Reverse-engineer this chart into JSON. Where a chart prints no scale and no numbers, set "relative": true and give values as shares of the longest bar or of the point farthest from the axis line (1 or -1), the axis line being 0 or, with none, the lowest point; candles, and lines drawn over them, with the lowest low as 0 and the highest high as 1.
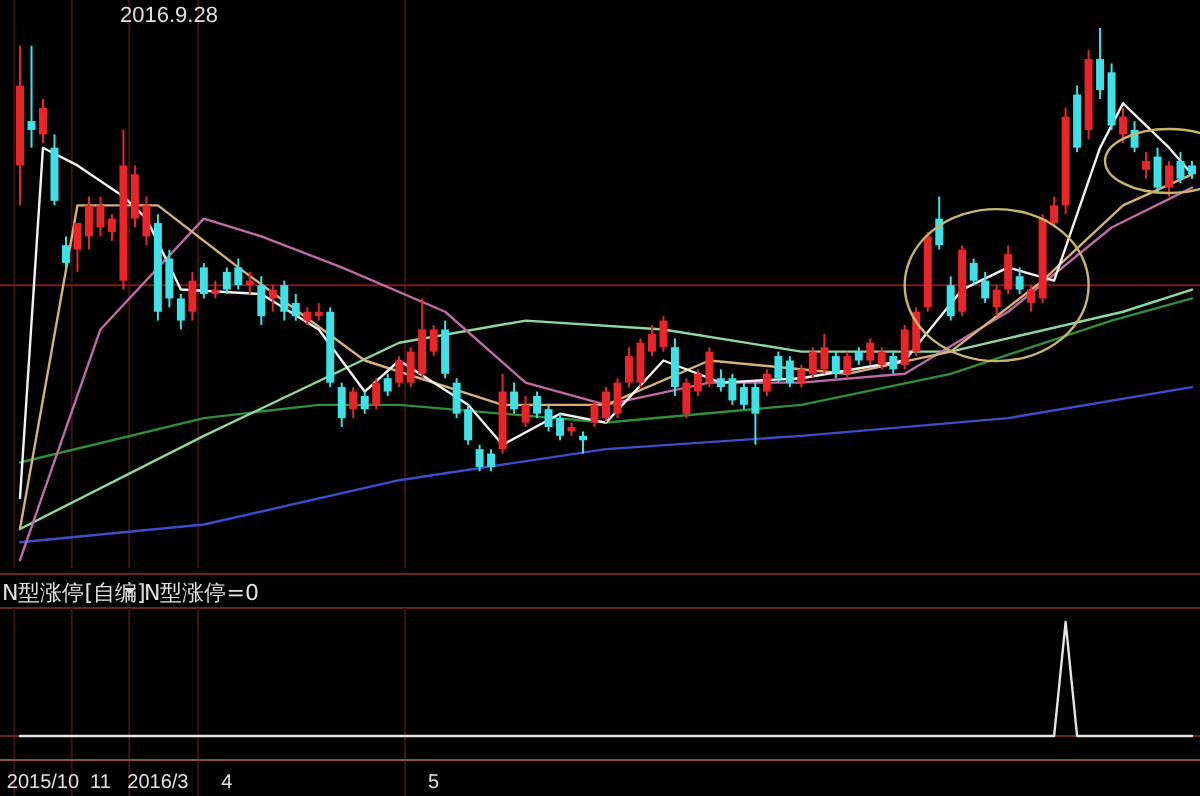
{
  "chart_data": [
    {
      "type": "candlestick",
      "title": "2016.9.28",
      "relative": true,
      "tick_labels": false,
      "categories": [
        null,
        null,
        "2015/10",
        null,
        null,
        null,
        null,
        "11",
        null,
        null,
        null,
        null,
        "2016/3",
        null,
        null,
        null,
        null,
        null,
        "4",
        null,
        null,
        null,
        null,
        null,
        null,
        null,
        null,
        null,
        null,
        null,
        null,
        null,
        null,
        null,
        null,
        null,
        "5",
        null,
        null,
        null,
        null,
        null,
        null,
        null,
        null,
        null,
        null,
        null,
        null,
        null,
        null,
        null,
        null,
        null,
        null,
        null,
        null,
        null,
        null,
        null,
        null,
        null,
        null,
        null,
        null,
        null,
        null,
        null,
        null,
        null,
        null,
        null,
        null,
        null,
        null,
        null,
        null,
        null,
        null,
        null,
        null,
        null,
        null,
        null,
        null,
        null,
        null,
        null,
        null,
        null,
        null,
        null,
        null,
        null,
        null,
        null,
        null,
        null,
        null,
        null,
        null,
        null,
        null
      ],
      "ohlc": [
        [
          0.69,
          0.96,
          0.6,
          0.87
        ],
        [
          0.79,
          0.96,
          0.73,
          0.77
        ],
        [
          0.76,
          0.84,
          0.74,
          0.82
        ],
        [
          0.73,
          0.76,
          0.6,
          0.61
        ],
        [
          0.51,
          0.53,
          0.46,
          0.47
        ],
        [
          0.5,
          0.56,
          0.45,
          0.56
        ],
        [
          0.53,
          0.62,
          0.5,
          0.6
        ],
        [
          0.55,
          0.62,
          0.53,
          0.6
        ],
        [
          0.54,
          0.58,
          0.52,
          0.57
        ],
        [
          0.43,
          0.77,
          0.41,
          0.69
        ],
        [
          0.57,
          0.69,
          0.55,
          0.67
        ],
        [
          0.53,
          0.62,
          0.51,
          0.6
        ],
        [
          0.56,
          0.58,
          0.34,
          0.36
        ],
        [
          0.48,
          0.5,
          0.37,
          0.39
        ],
        [
          0.39,
          0.4,
          0.32,
          0.34
        ],
        [
          0.36,
          0.45,
          0.34,
          0.43
        ],
        [
          0.46,
          0.47,
          0.39,
          0.4
        ],
        [
          0.4,
          0.43,
          0.39,
          0.41
        ],
        [
          0.45,
          0.46,
          0.4,
          0.41
        ],
        [
          0.46,
          0.48,
          0.41,
          0.42
        ],
        [
          0.42,
          0.45,
          0.4,
          0.43
        ],
        [
          0.42,
          0.44,
          0.33,
          0.35
        ],
        [
          0.39,
          0.42,
          0.36,
          0.41
        ],
        [
          0.42,
          0.43,
          0.34,
          0.36
        ],
        [
          0.38,
          0.4,
          0.34,
          0.35
        ],
        [
          0.34,
          0.37,
          0.33,
          0.36
        ],
        [
          0.35,
          0.38,
          0.34,
          0.36
        ],
        [
          0.36,
          0.37,
          0.19,
          0.2
        ],
        [
          0.19,
          0.2,
          0.1,
          0.12
        ],
        [
          0.14,
          0.19,
          0.12,
          0.18
        ],
        [
          0.17,
          0.18,
          0.13,
          0.14
        ],
        [
          0.15,
          0.21,
          0.14,
          0.2
        ],
        [
          0.21,
          0.22,
          0.17,
          0.18
        ],
        [
          0.2,
          0.26,
          0.19,
          0.25
        ],
        [
          0.2,
          0.28,
          0.19,
          0.27
        ],
        [
          0.22,
          0.39,
          0.21,
          0.32
        ],
        [
          0.27,
          0.33,
          0.26,
          0.32
        ],
        [
          0.32,
          0.34,
          0.21,
          0.22
        ],
        [
          0.2,
          0.21,
          0.12,
          0.13
        ],
        [
          0.14,
          0.15,
          0.06,
          0.07
        ],
        [
          0.05,
          0.06,
          0.0,
          0.01
        ],
        [
          0.04,
          0.05,
          0.0,
          0.01
        ],
        [
          0.05,
          0.22,
          0.04,
          0.18
        ],
        [
          0.18,
          0.2,
          0.13,
          0.14
        ],
        [
          0.11,
          0.17,
          0.1,
          0.15
        ],
        [
          0.17,
          0.18,
          0.12,
          0.13
        ],
        [
          0.14,
          0.15,
          0.09,
          0.1
        ],
        [
          0.12,
          0.13,
          0.07,
          0.08
        ],
        [
          0.09,
          0.11,
          0.08,
          0.1
        ],
        [
          0.08,
          0.09,
          0.04,
          0.07
        ],
        [
          0.11,
          0.16,
          0.1,
          0.15
        ],
        [
          0.12,
          0.19,
          0.11,
          0.18
        ],
        [
          0.13,
          0.21,
          0.12,
          0.2
        ],
        [
          0.2,
          0.28,
          0.19,
          0.26
        ],
        [
          0.2,
          0.3,
          0.19,
          0.29
        ],
        [
          0.27,
          0.33,
          0.26,
          0.31
        ],
        [
          0.28,
          0.35,
          0.27,
          0.34
        ],
        [
          0.28,
          0.3,
          0.17,
          0.19
        ],
        [
          0.13,
          0.21,
          0.12,
          0.2
        ],
        [
          0.18,
          0.23,
          0.17,
          0.22
        ],
        [
          0.2,
          0.28,
          0.19,
          0.27
        ],
        [
          0.21,
          0.23,
          0.18,
          0.19
        ],
        [
          0.21,
          0.22,
          0.15,
          0.16
        ],
        [
          0.19,
          0.2,
          0.14,
          0.15
        ],
        [
          0.19,
          0.2,
          0.06,
          0.13
        ],
        [
          0.18,
          0.23,
          0.17,
          0.22
        ],
        [
          0.26,
          0.27,
          0.2,
          0.21
        ],
        [
          0.25,
          0.26,
          0.19,
          0.2
        ],
        [
          0.2,
          0.24,
          0.19,
          0.23
        ],
        [
          0.22,
          0.28,
          0.21,
          0.27
        ],
        [
          0.23,
          0.31,
          0.22,
          0.28
        ],
        [
          0.26,
          0.27,
          0.21,
          0.22
        ],
        [
          0.22,
          0.27,
          0.21,
          0.26
        ],
        [
          0.27,
          0.28,
          0.24,
          0.25
        ],
        [
          0.25,
          0.3,
          0.24,
          0.29
        ],
        [
          0.24,
          0.28,
          0.23,
          0.27
        ],
        [
          0.26,
          0.27,
          0.22,
          0.23
        ],
        [
          0.24,
          0.33,
          0.23,
          0.32
        ],
        [
          0.27,
          0.37,
          0.26,
          0.36
        ],
        [
          0.37,
          0.54,
          0.36,
          0.53
        ],
        [
          0.57,
          0.62,
          0.5,
          0.51
        ],
        [
          0.42,
          0.44,
          0.34,
          0.35
        ],
        [
          0.36,
          0.51,
          0.35,
          0.5
        ],
        [
          0.47,
          0.48,
          0.42,
          0.43
        ],
        [
          0.43,
          0.45,
          0.38,
          0.39
        ],
        [
          0.37,
          0.42,
          0.35,
          0.41
        ],
        [
          0.41,
          0.51,
          0.4,
          0.49
        ],
        [
          0.44,
          0.46,
          0.4,
          0.41
        ],
        [
          0.38,
          0.42,
          0.36,
          0.41
        ],
        [
          0.39,
          0.58,
          0.38,
          0.57
        ],
        [
          0.56,
          0.62,
          0.55,
          0.6
        ],
        [
          0.6,
          0.82,
          0.58,
          0.8
        ],
        [
          0.85,
          0.87,
          0.72,
          0.73
        ],
        [
          0.77,
          0.95,
          0.75,
          0.93
        ],
        [
          0.93,
          1.0,
          0.84,
          0.86
        ],
        [
          0.9,
          0.92,
          0.77,
          0.78
        ],
        [
          0.76,
          0.82,
          0.74,
          0.8
        ],
        [
          0.77,
          0.79,
          0.72,
          0.73
        ],
        [
          0.68,
          0.72,
          0.66,
          0.7
        ],
        [
          0.71,
          0.73,
          0.63,
          0.64
        ],
        [
          0.64,
          0.7,
          0.62,
          0.69
        ],
        [
          0.7,
          0.72,
          0.65,
          0.66
        ],
        [
          0.69,
          0.7,
          0.66,
          0.67
        ]
      ],
      "series": [
        {
          "type": "line",
          "color": "#3a4fc8",
          "values": [
            -0.16,
            null,
            null,
            null,
            null,
            null,
            null,
            null,
            null,
            null,
            null,
            null,
            null,
            null,
            null,
            null,
            -0.12,
            null,
            null,
            null,
            null,
            null,
            null,
            null,
            null,
            null,
            null,
            null,
            null,
            null,
            null,
            null,
            null,
            -0.02,
            null,
            null,
            null,
            null,
            null,
            null,
            null,
            null,
            null,
            null,
            null,
            null,
            null,
            null,
            null,
            null,
            null,
            0.05,
            null,
            null,
            null,
            null,
            null,
            null,
            null,
            null,
            null,
            null,
            null,
            null,
            null,
            null,
            null,
            null,
            0.08,
            null,
            null,
            null,
            null,
            null,
            null,
            null,
            null,
            null,
            null,
            null,
            null,
            null,
            null,
            null,
            null,
            null,
            0.12,
            null,
            null,
            null,
            null,
            null,
            null,
            null,
            null,
            null,
            null,
            null,
            null,
            null,
            null,
            null,
            0.19
          ]
        },
        {
          "type": "line",
          "color": "#2f8f3a",
          "values": [
            0.02,
            null,
            null,
            null,
            null,
            null,
            null,
            null,
            null,
            null,
            null,
            null,
            null,
            null,
            null,
            null,
            0.12,
            null,
            null,
            null,
            null,
            null,
            null,
            null,
            null,
            null,
            0.15,
            null,
            null,
            null,
            null,
            null,
            null,
            0.15,
            null,
            null,
            null,
            null,
            null,
            null,
            null,
            null,
            null,
            null,
            null,
            null,
            null,
            null,
            null,
            null,
            null,
            0.11,
            null,
            null,
            null,
            null,
            null,
            null,
            null,
            null,
            null,
            null,
            null,
            null,
            null,
            null,
            null,
            null,
            0.15,
            null,
            null,
            null,
            null,
            null,
            null,
            null,
            null,
            null,
            null,
            null,
            null,
            0.22,
            null,
            null,
            null,
            null,
            null,
            null,
            null,
            null,
            null,
            null,
            null,
            null,
            null,
            0.34,
            null,
            null,
            null,
            null,
            null,
            null,
            0.39
          ]
        },
        {
          "type": "line",
          "color": "#8fd9a0",
          "values": [
            -0.13,
            null,
            null,
            null,
            null,
            null,
            null,
            null,
            null,
            null,
            null,
            null,
            null,
            null,
            null,
            null,
            0.08,
            null,
            null,
            null,
            null,
            null,
            null,
            null,
            null,
            null,
            null,
            null,
            null,
            null,
            null,
            null,
            null,
            0.29,
            null,
            null,
            null,
            null,
            null,
            null,
            null,
            null,
            null,
            null,
            0.34,
            null,
            null,
            null,
            null,
            null,
            null,
            null,
            null,
            null,
            null,
            null,
            0.32,
            null,
            null,
            null,
            null,
            null,
            null,
            null,
            null,
            null,
            null,
            null,
            0.27,
            null,
            null,
            null,
            null,
            null,
            null,
            null,
            null,
            null,
            null,
            null,
            null,
            0.27,
            null,
            null,
            null,
            null,
            null,
            null,
            null,
            null,
            null,
            null,
            null,
            null,
            null,
            null,
            0.36,
            null,
            null,
            null,
            null,
            null,
            0.41
          ]
        },
        {
          "type": "line",
          "color": "#c06aa8",
          "values": [
            -0.2,
            null,
            null,
            null,
            null,
            null,
            null,
            0.32,
            null,
            null,
            null,
            null,
            null,
            null,
            null,
            null,
            0.57,
            null,
            null,
            null,
            null,
            0.53,
            null,
            null,
            null,
            null,
            null,
            null,
            0.46,
            null,
            null,
            null,
            null,
            null,
            null,
            null,
            null,
            0.36,
            null,
            null,
            null,
            null,
            null,
            null,
            0.2,
            null,
            null,
            null,
            null,
            null,
            null,
            0.15,
            null,
            null,
            null,
            null,
            null,
            null,
            null,
            null,
            0.2,
            null,
            null,
            null,
            null,
            null,
            null,
            null,
            0.2,
            null,
            null,
            null,
            null,
            null,
            null,
            null,
            null,
            0.22,
            null,
            null,
            null,
            null,
            null,
            null,
            null,
            null,
            0.36,
            null,
            null,
            null,
            null,
            null,
            null,
            null,
            null,
            0.55,
            null,
            null,
            null,
            null,
            null,
            null,
            0.64
          ]
        },
        {
          "type": "line",
          "color": "#d8b07a",
          "values": [
            -0.13,
            null,
            null,
            null,
            null,
            0.6,
            null,
            null,
            null,
            null,
            null,
            null,
            0.6,
            null,
            null,
            null,
            null,
            null,
            null,
            0.46,
            null,
            null,
            null,
            null,
            null,
            null,
            null,
            null,
            null,
            null,
            0.25,
            null,
            null,
            null,
            null,
            null,
            null,
            null,
            null,
            null,
            null,
            null,
            0.15,
            null,
            null,
            null,
            null,
            null,
            null,
            null,
            null,
            0.15,
            null,
            null,
            null,
            null,
            null,
            null,
            null,
            null,
            0.25,
            null,
            null,
            null,
            null,
            null,
            null,
            null,
            null,
            null,
            null,
            null,
            0.22,
            null,
            null,
            null,
            null,
            null,
            null,
            null,
            null,
            0.27,
            null,
            null,
            null,
            null,
            null,
            null,
            null,
            0.43,
            null,
            null,
            null,
            null,
            null,
            null,
            0.6,
            null,
            null,
            null,
            null,
            null,
            0.67
          ]
        },
        {
          "type": "line",
          "color": "#f2f2f2",
          "values": [
            -0.06,
            null,
            0.73,
            null,
            null,
            0.69,
            null,
            null,
            null,
            0.62,
            null,
            0.57,
            null,
            null,
            0.41,
            null,
            null,
            null,
            null,
            null,
            null,
            0.4,
            null,
            null,
            null,
            null,
            0.32,
            null,
            null,
            null,
            0.18,
            null,
            null,
            0.25,
            null,
            null,
            null,
            null,
            null,
            0.15,
            null,
            null,
            0.06,
            null,
            null,
            null,
            null,
            0.13,
            null,
            null,
            null,
            0.11,
            null,
            null,
            null,
            null,
            0.25,
            null,
            null,
            null,
            null,
            0.2,
            null,
            null,
            null,
            null,
            null,
            null,
            0.21,
            null,
            null,
            null,
            null,
            null,
            null,
            null,
            null,
            0.25,
            null,
            null,
            null,
            null,
            0.41,
            null,
            null,
            null,
            0.46,
            null,
            null,
            null,
            0.43,
            null,
            null,
            null,
            0.73,
            null,
            0.83,
            null,
            null,
            null,
            0.73,
            null,
            0.67
          ]
        }
      ],
      "ref_lines": [
        {
          "axis": "y",
          "value": 0.42,
          "color": "#7a1c1c"
        }
      ]
    },
    {
      "type": "line",
      "title": "N型涨停[自编]",
      "subtitle": "N型涨停=0",
      "relative": true,
      "tick_labels": "x",
      "categories": [
        null,
        null,
        "2015/10",
        null,
        null,
        null,
        null,
        "11",
        null,
        null,
        null,
        null,
        "2016/3",
        null,
        null,
        null,
        null,
        null,
        "4",
        null,
        null,
        null,
        null,
        null,
        null,
        null,
        null,
        null,
        null,
        null,
        null,
        null,
        null,
        null,
        null,
        null,
        "5",
        null,
        null,
        null,
        null,
        null,
        null,
        null,
        null,
        null,
        null,
        null,
        null,
        null,
        null,
        null,
        null,
        null,
        null,
        null,
        null,
        null,
        null,
        null,
        null,
        null,
        null,
        null,
        null,
        null,
        null,
        null,
        null,
        null,
        null,
        null,
        null,
        null,
        null,
        null,
        null,
        null,
        null,
        null,
        null,
        null,
        null,
        null,
        null,
        null,
        null,
        null,
        null,
        null,
        null,
        null,
        null,
        null,
        null,
        null,
        null,
        null,
        null,
        null,
        null,
        null,
        null
      ],
      "series": [
        {
          "color": "#e6e6e6",
          "values": [
            0,
            0,
            0,
            0,
            0,
            0,
            0,
            0,
            0,
            0,
            0,
            0,
            0,
            0,
            0,
            0,
            0,
            0,
            0,
            0,
            0,
            0,
            0,
            0,
            0,
            0,
            0,
            0,
            0,
            0,
            0,
            0,
            0,
            0,
            0,
            0,
            0,
            0,
            0,
            0,
            0,
            0,
            0,
            0,
            0,
            0,
            0,
            0,
            0,
            0,
            0,
            0,
            0,
            0,
            0,
            0,
            0,
            0,
            0,
            0,
            0,
            0,
            0,
            0,
            0,
            0,
            0,
            0,
            0,
            0,
            0,
            0,
            0,
            0,
            0,
            0,
            0,
            0,
            0,
            0,
            0,
            0,
            0,
            0,
            0,
            0,
            0,
            0,
            0,
            0,
            0,
            1,
            0,
            0,
            0,
            0,
            0,
            0,
            0,
            0,
            0,
            0,
            0
          ]
        }
      ]
    }
  ]
}
